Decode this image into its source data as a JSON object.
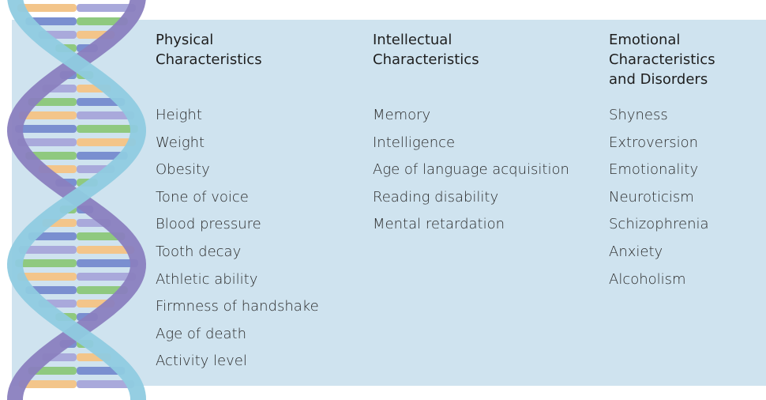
{
  "columns": [
    {
      "heading": [
        "Physical",
        "Characteristics"
      ],
      "items": [
        "Height",
        "Weight",
        "Obesity",
        "Tone of voice",
        "Blood pressure",
        "Tooth decay",
        "Athletic ability",
        "Firmness of handshake",
        "Age of death",
        "Activity level"
      ]
    },
    {
      "heading": [
        "Intellectual",
        "Characteristics"
      ],
      "items": [
        "Memory",
        "Intelligence",
        "Age of language acquisition",
        "Reading disability",
        "Mental retardation"
      ]
    },
    {
      "heading": [
        "Emotional",
        "Characteristics",
        "and Disorders"
      ],
      "items": [
        "Shyness",
        "Extroversion",
        "Emotionality",
        "Neuroticism",
        "Schizophrenia",
        "Anxiety",
        "Alcoholism"
      ]
    }
  ]
}
